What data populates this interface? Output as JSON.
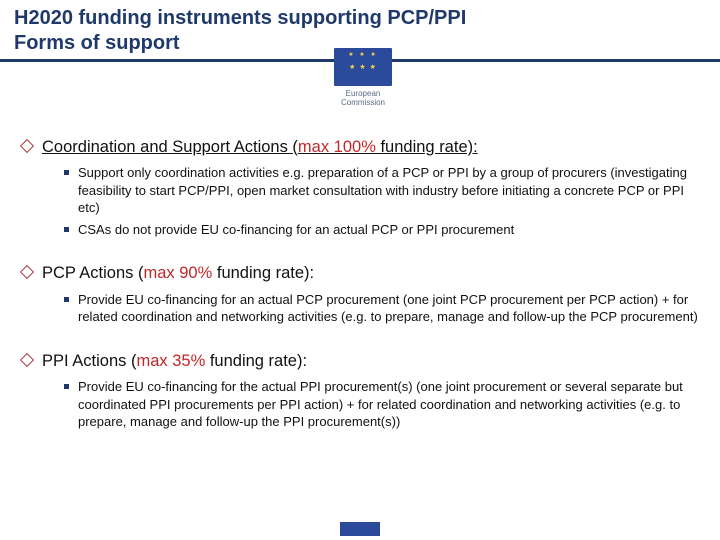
{
  "header": {
    "title_line1": "H2020 funding instruments supporting PCP/PPI",
    "title_line2": "Forms of support",
    "logo_text_line1": "European",
    "logo_text_line2": "Commission"
  },
  "colors": {
    "navy": "#1f3a6a",
    "red": "#c02828",
    "bullet_border": "#b23a3a",
    "flag_blue": "#2b4a9b",
    "star_gold": "#f8d64e"
  },
  "sections": [
    {
      "title_plain": "Coordination and Support Actions (",
      "title_rate": "max 100%",
      "title_tail": " funding rate):",
      "underline": true,
      "items": [
        "Support only coordination activities e.g. preparation of a PCP or PPI by a group of procurers (investigating feasibility to start PCP/PPI, open market consultation with industry before initiating a concrete PCP or PPI etc)",
        "CSAs do not provide EU co-financing for an actual PCP or PPI procurement"
      ]
    },
    {
      "title_plain": "PCP Actions (",
      "title_rate": "max 90%",
      "title_tail": " funding rate):",
      "underline": false,
      "items": [
        "Provide EU co-financing for an actual PCP procurement (one joint PCP procurement per PCP action) + for related coordination and networking activities (e.g. to prepare, manage and follow-up the PCP procurement)"
      ]
    },
    {
      "title_plain": "PPI Actions (",
      "title_rate": "max 35%",
      "title_tail": " funding rate):",
      "underline": false,
      "items": [
        "Provide  EU co-financing for the actual PPI procurement(s) (one joint procurement or several separate but coordinated PPI procurements per PPI action) + for related coordination and networking activities (e.g. to prepare, manage and follow-up the PPI procurement(s))"
      ]
    }
  ]
}
